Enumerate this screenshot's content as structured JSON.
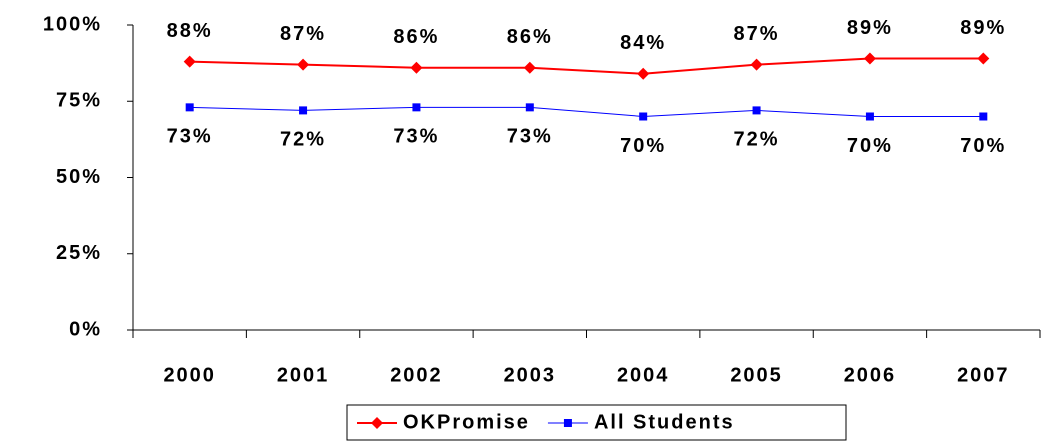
{
  "chart_data": {
    "type": "line",
    "categories": [
      "2000",
      "2001",
      "2002",
      "2003",
      "2004",
      "2005",
      "2006",
      "2007"
    ],
    "series": [
      {
        "name": "OKPromise",
        "color": "#ff0000",
        "marker": "diamond",
        "values": [
          88,
          87,
          86,
          86,
          84,
          87,
          89,
          89
        ],
        "value_labels": [
          "88%",
          "87%",
          "86%",
          "86%",
          "84%",
          "87%",
          "89%",
          "89%"
        ]
      },
      {
        "name": "All Students",
        "color": "#0000ff",
        "marker": "square",
        "values": [
          73,
          72,
          73,
          73,
          70,
          72,
          70,
          70
        ],
        "value_labels": [
          "73%",
          "72%",
          "73%",
          "73%",
          "70%",
          "72%",
          "70%",
          "70%"
        ]
      }
    ],
    "ylim": [
      0,
      100
    ],
    "yticks": [
      {
        "value": 0,
        "label": "0%"
      },
      {
        "value": 25,
        "label": "25%"
      },
      {
        "value": 50,
        "label": "50%"
      },
      {
        "value": 75,
        "label": "75%"
      },
      {
        "value": 100,
        "label": "100%"
      }
    ],
    "grid": false,
    "legend": "bottom"
  }
}
